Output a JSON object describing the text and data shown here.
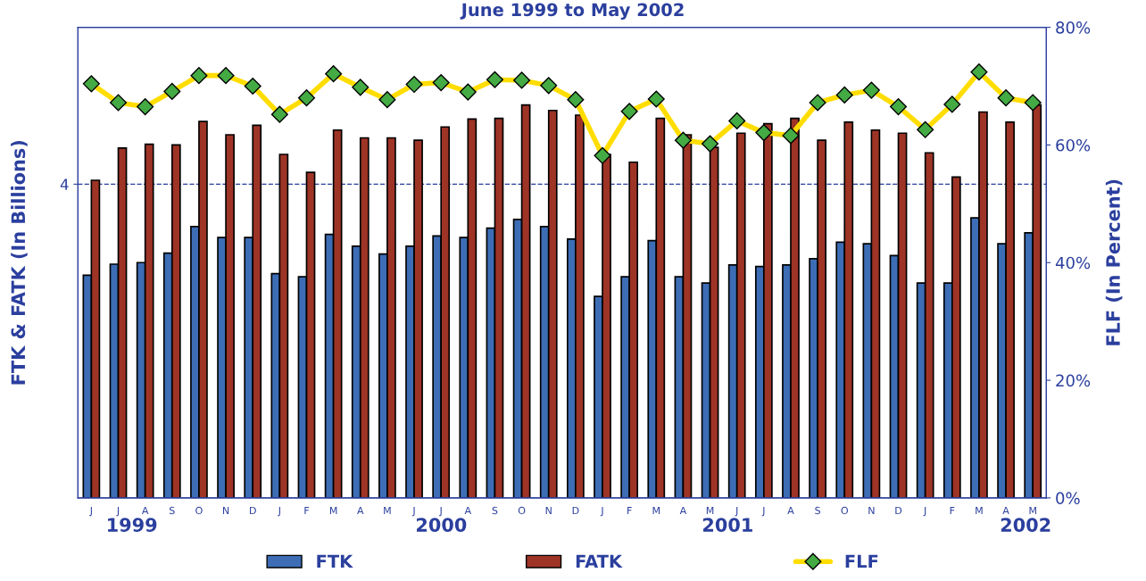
{
  "chart_data": {
    "type": "bar",
    "title": "June 1999 to May 2002",
    "ylabel": "FTK & FATK (In Billions)",
    "y2label": "FLF (In Percent)",
    "categories": [
      "J",
      "J",
      "A",
      "S",
      "O",
      "N",
      "D",
      "J",
      "F",
      "M",
      "A",
      "M",
      "J",
      "J",
      "A",
      "S",
      "O",
      "N",
      "D",
      "J",
      "F",
      "M",
      "A",
      "M",
      "J",
      "J",
      "A",
      "S",
      "O",
      "N",
      "D",
      "J",
      "F",
      "M",
      "A",
      "M"
    ],
    "series": [
      {
        "name": "FTK",
        "color": "#3d6db5",
        "values": [
          2.84,
          2.98,
          3.0,
          3.12,
          3.46,
          3.32,
          3.32,
          2.86,
          2.82,
          3.36,
          3.21,
          3.11,
          3.21,
          3.34,
          3.32,
          3.44,
          3.55,
          3.46,
          3.3,
          2.57,
          2.82,
          3.28,
          2.82,
          2.74,
          2.97,
          2.95,
          2.97,
          3.05,
          3.26,
          3.24,
          3.09,
          2.74,
          2.74,
          3.57,
          3.24,
          3.38
        ]
      },
      {
        "name": "FATK",
        "color": "#9e3426",
        "values": [
          4.05,
          4.46,
          4.51,
          4.5,
          4.8,
          4.63,
          4.75,
          4.38,
          4.15,
          4.69,
          4.59,
          4.59,
          4.56,
          4.73,
          4.83,
          4.84,
          5.01,
          4.94,
          4.88,
          4.38,
          4.28,
          4.84,
          4.63,
          4.47,
          4.65,
          4.77,
          4.84,
          4.56,
          4.79,
          4.69,
          4.65,
          4.4,
          4.09,
          4.92,
          4.79,
          5.01
        ]
      },
      {
        "name": "FLF",
        "type": "line",
        "axis": "y2",
        "color": "#ffdd00",
        "marker": "diamond",
        "values": [
          70.4,
          67.2,
          66.5,
          69.1,
          71.8,
          71.8,
          70.0,
          65.2,
          68.0,
          72.1,
          69.8,
          67.7,
          70.3,
          70.6,
          69.0,
          71.1,
          71.0,
          70.1,
          67.7,
          58.2,
          65.7,
          67.8,
          60.8,
          60.2,
          64.1,
          62.1,
          61.6,
          67.2,
          68.5,
          69.3,
          66.5,
          62.6,
          66.9,
          72.4,
          68.0,
          67.2
        ]
      }
    ],
    "ylim": [
      0,
      6
    ],
    "yticks": [
      4
    ],
    "y2lim": [
      0,
      80
    ],
    "y2ticks": [
      {
        "value": 0,
        "label": "0%"
      },
      {
        "value": 20,
        "label": "20%"
      },
      {
        "value": 40,
        "label": "40%"
      },
      {
        "value": 60,
        "label": "60%"
      },
      {
        "value": 80,
        "label": "80%"
      }
    ],
    "ref_lines": [
      {
        "axis": "y",
        "value": 4,
        "color": "#2b3f9e",
        "line_style": "dashed"
      }
    ],
    "legend": "bottom",
    "annotations": [
      "1999",
      "2000",
      "2001",
      "2002"
    ]
  }
}
